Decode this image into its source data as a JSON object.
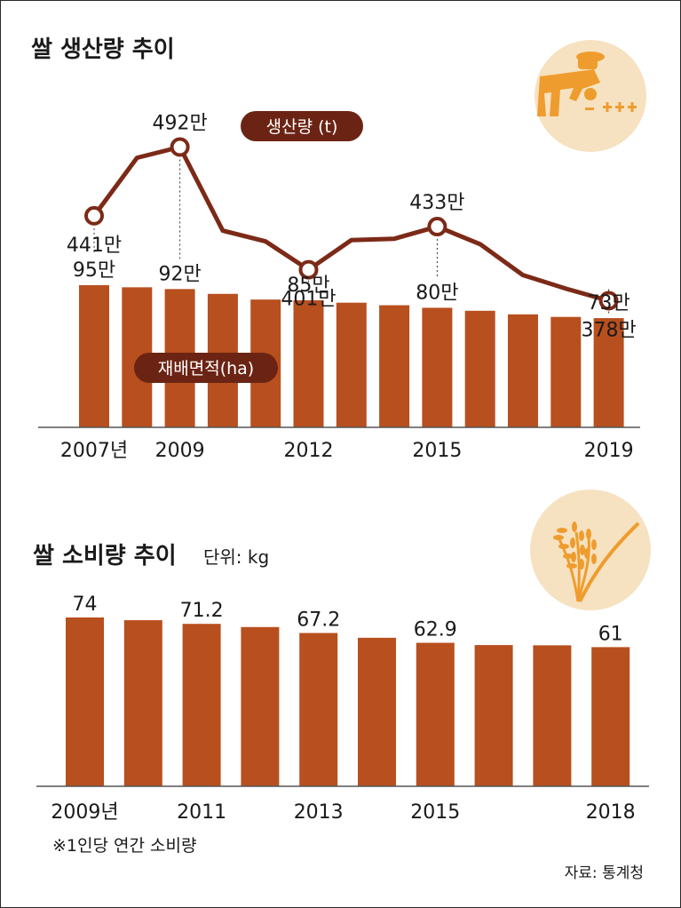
{
  "colors": {
    "bar": "#b84f1e",
    "line": "#7c2a17",
    "pill_bg": "#6b2414",
    "pill_text": "#ffffff",
    "text": "#1a1a1a",
    "icon_circle": "#f6e2c0",
    "icon_orange": "#ef9c2e"
  },
  "icons": {
    "farmer": "farmer-planting-icon",
    "rice": "rice-stalk-icon"
  },
  "chart_data": [
    {
      "type": "bar+line",
      "title": "쌀 생산량 추이",
      "categories": [
        "2007",
        "2008",
        "2009",
        "2010",
        "2011",
        "2012",
        "2013",
        "2014",
        "2015",
        "2016",
        "2017",
        "2018",
        "2019"
      ],
      "series": [
        {
          "name": "재배면적(ha)",
          "type": "bar",
          "values": [
            950000,
            936000,
            924000,
            892000,
            854000,
            849000,
            833000,
            816000,
            799000,
            779000,
            755000,
            738000,
            730000
          ],
          "labels": [
            {
              "index": 0,
              "text": "95만"
            },
            {
              "index": 2,
              "text": "92만"
            },
            {
              "index": 5,
              "text": "85만"
            },
            {
              "index": 8,
              "text": "80만"
            },
            {
              "index": 12,
              "text": "73만"
            }
          ]
        },
        {
          "name": "생산량 (t)",
          "type": "line",
          "values": [
            4410000,
            4840000,
            4920000,
            4300000,
            4220000,
            4010000,
            4230000,
            4240000,
            4330000,
            4200000,
            3970000,
            3870000,
            3780000
          ],
          "markers": [
            {
              "index": 0,
              "text": "441만"
            },
            {
              "index": 2,
              "text": "492만"
            },
            {
              "index": 5,
              "text": "401만"
            },
            {
              "index": 8,
              "text": "433만"
            },
            {
              "index": 12,
              "text": "378만"
            }
          ]
        }
      ],
      "x_tick_labels": [
        {
          "index": 0,
          "text": "2007년"
        },
        {
          "index": 2,
          "text": "2009"
        },
        {
          "index": 5,
          "text": "2012"
        },
        {
          "index": 8,
          "text": "2015"
        },
        {
          "index": 12,
          "text": "2019"
        }
      ],
      "legend_line": "생산량 (t)",
      "legend_bar": "재배면적(ha)",
      "bar_ylim": [
        0,
        1000000
      ],
      "line_ylim": [
        3500000,
        5200000
      ]
    },
    {
      "type": "bar",
      "title": "쌀 소비량 추이",
      "unit_label": "단위: kg",
      "categories": [
        "2009",
        "2010",
        "2011",
        "2012",
        "2013",
        "2014",
        "2015",
        "2016",
        "2017",
        "2018"
      ],
      "values": [
        74.0,
        72.8,
        71.2,
        69.8,
        67.2,
        65.1,
        62.9,
        61.9,
        61.8,
        61.0
      ],
      "labels": [
        {
          "index": 0,
          "text": "74"
        },
        {
          "index": 2,
          "text": "71.2"
        },
        {
          "index": 4,
          "text": "67.2"
        },
        {
          "index": 6,
          "text": "62.9"
        },
        {
          "index": 9,
          "text": "61"
        }
      ],
      "x_tick_labels": [
        {
          "index": 0,
          "text": "2009년"
        },
        {
          "index": 2,
          "text": "2011"
        },
        {
          "index": 4,
          "text": "2013"
        },
        {
          "index": 6,
          "text": "2015"
        },
        {
          "index": 9,
          "text": "2018"
        }
      ],
      "ylim": [
        0,
        80
      ]
    }
  ],
  "footnote": "※1인당 연간 소비량",
  "source": "자료: 통계청"
}
